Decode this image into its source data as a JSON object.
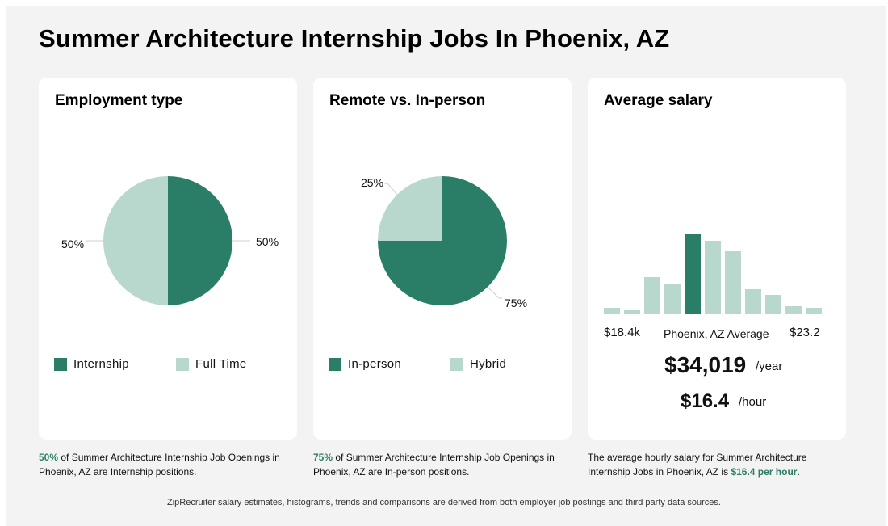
{
  "page_title": "Summer Architecture Internship Jobs In Phoenix, AZ",
  "colors": {
    "dark": "#2a7d66",
    "light": "#b8d7cd",
    "accent_text": "#2a7d66"
  },
  "employment": {
    "title": "Employment type",
    "labels": {
      "internship": "50%",
      "full_time": "50%"
    },
    "legend": [
      "Internship",
      "Full Time"
    ],
    "caption_highlight": "50%",
    "caption_rest": " of Summer Architecture Internship Job Openings in Phoenix, AZ are Internship positions."
  },
  "remote": {
    "title": "Remote vs. In-person",
    "labels": {
      "in_person": "75%",
      "hybrid": "25%"
    },
    "legend": [
      "In-person",
      "Hybrid"
    ],
    "caption_highlight": "75%",
    "caption_rest": " of Summer Architecture Internship Job Openings in Phoenix, AZ are In-person positions."
  },
  "salary": {
    "title": "Average salary",
    "min_label": "$18.4k",
    "avg_label": "Phoenix, AZ Average",
    "max_label": "$23.2",
    "yearly": "$34,019",
    "yearly_unit": "/year",
    "hourly": "$16.4",
    "hourly_unit": "/hour",
    "caption_pre": "The average hourly salary for Summer Architecture Internship Jobs in Phoenix, AZ is ",
    "caption_highlight": "$16.4 per hour",
    "caption_post": "."
  },
  "footnote": "ZipRecruiter salary estimates, histograms, trends and comparisons are derived from both employer job postings and third party data sources.",
  "chart_data": [
    {
      "type": "pie",
      "title": "Employment type",
      "categories": [
        "Internship",
        "Full Time"
      ],
      "values": [
        50,
        50
      ],
      "colors": [
        "#2a7d66",
        "#b8d7cd"
      ],
      "legend": "bottom"
    },
    {
      "type": "pie",
      "title": "Remote vs. In-person",
      "categories": [
        "In-person",
        "Hybrid"
      ],
      "values": [
        75,
        25
      ],
      "colors": [
        "#2a7d66",
        "#b8d7cd"
      ],
      "legend": "bottom"
    },
    {
      "type": "bar",
      "title": "Average salary",
      "values": [
        8,
        5,
        46,
        38,
        100,
        91,
        78,
        31,
        24,
        10,
        8
      ],
      "highlight_index": 4,
      "ylim": [
        0,
        100
      ],
      "grid": false
    }
  ]
}
